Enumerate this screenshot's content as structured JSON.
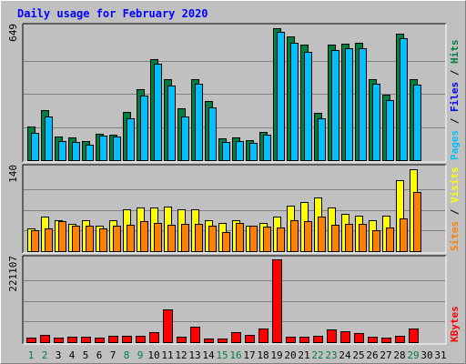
{
  "chart_data": {
    "type": "bar",
    "title": "Daily usage for February 2020",
    "categories": [
      "1",
      "2",
      "3",
      "4",
      "5",
      "6",
      "7",
      "8",
      "9",
      "10",
      "11",
      "12",
      "13",
      "14",
      "15",
      "16",
      "17",
      "18",
      "19",
      "20",
      "21",
      "22",
      "23",
      "24",
      "25",
      "26",
      "27",
      "28",
      "29",
      "30",
      "31"
    ],
    "weekend_days": [
      "1",
      "2",
      "8",
      "9",
      "15",
      "16",
      "22",
      "23",
      "29"
    ],
    "colors": {
      "hits": "#008040",
      "files": "#00c0ff",
      "sites": "#ff8000",
      "visits": "#ffff00",
      "kbytes": "#ff0000",
      "weekday_label": "#000000",
      "weekend_label": "#008040",
      "title": "#0000ff"
    },
    "panels": [
      {
        "id": "hits-files",
        "ymax": 649,
        "ymax_label": "649",
        "legend": [
          {
            "text": "Pages",
            "color": "#00c0ff"
          },
          {
            "text": " / ",
            "color": "#000000"
          },
          {
            "text": "Files",
            "color": "#0000ff"
          },
          {
            "text": " / ",
            "color": "#000000"
          },
          {
            "text": "Hits",
            "color": "#008040"
          }
        ],
        "series": [
          {
            "name": "Hits",
            "color": "#008040",
            "values": [
              165,
              244,
              115,
              110,
              95,
              130,
              125,
              235,
              345,
              495,
              395,
              255,
              395,
              290,
              105,
              110,
              100,
              140,
              645,
              605,
              565,
              230,
              565,
              570,
              575,
              395,
              320,
              620,
              395,
              null,
              null
            ]
          },
          {
            "name": "Files",
            "color": "#00c0ff",
            "values": [
              135,
              215,
              95,
              90,
              75,
              120,
              115,
              205,
              315,
              470,
              365,
              215,
              375,
              260,
              90,
              95,
              85,
              125,
              625,
              575,
              530,
              205,
              540,
              545,
              545,
              375,
              295,
              595,
              370,
              null,
              null
            ]
          }
        ]
      },
      {
        "id": "sites-visits",
        "ymax": 140,
        "ymax_label": "140",
        "legend": [
          {
            "text": "Sites",
            "color": "#ff8000"
          },
          {
            "text": " / ",
            "color": "#000000"
          },
          {
            "text": "Visits",
            "color": "#ffff00"
          }
        ],
        "series": [
          {
            "name": "Visits",
            "color": "#ffff00",
            "values": [
              38,
              59,
              52,
              46,
              52,
              43,
              52,
              71,
              74,
              74,
              75,
              70,
              71,
              52,
              48,
              52,
              43,
              48,
              58,
              77,
              83,
              91,
              74,
              63,
              60,
              53,
              60,
              120,
              139,
              null,
              null
            ]
          },
          {
            "name": "Sites",
            "color": "#ff8000",
            "values": [
              36,
              38,
              50,
              43,
              43,
              38,
              43,
              45,
              50,
              48,
              45,
              46,
              46,
              43,
              32,
              48,
              43,
              42,
              40,
              53,
              50,
              58,
              45,
              46,
              46,
              35,
              40,
              56,
              100,
              null,
              null
            ]
          }
        ]
      },
      {
        "id": "kbytes",
        "ymax": 221107,
        "ymax_label": "221107",
        "legend": [
          {
            "text": "KBytes",
            "color": "#ff0000"
          }
        ],
        "series": [
          {
            "name": "KBytes",
            "color": "#ff0000",
            "values": [
              12000,
              20000,
              12000,
              14000,
              14000,
              12000,
              16000,
              16000,
              16000,
              26000,
              87000,
              14000,
              42000,
              10000,
              10000,
              26000,
              20000,
              36000,
              221107,
              14000,
              14000,
              18000,
              34000,
              30000,
              24000,
              14000,
              12000,
              18000,
              36000,
              null,
              null
            ]
          }
        ]
      }
    ]
  }
}
